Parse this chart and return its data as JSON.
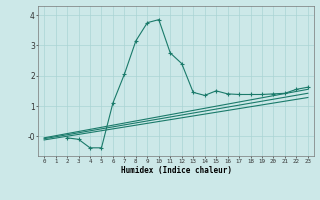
{
  "xlabel": "Humidex (Indice chaleur)",
  "background_color": "#cce8e8",
  "grid_color": "#aad4d4",
  "line_color": "#1a7a6a",
  "xlim": [
    -0.5,
    23.5
  ],
  "ylim": [
    -0.65,
    4.3
  ],
  "xticks": [
    0,
    1,
    2,
    3,
    4,
    5,
    6,
    7,
    8,
    9,
    10,
    11,
    12,
    13,
    14,
    15,
    16,
    17,
    18,
    19,
    20,
    21,
    22,
    23
  ],
  "yticks": [
    0,
    1,
    2,
    3,
    4
  ],
  "ytick_labels": [
    "-0",
    "1",
    "2",
    "3",
    "4"
  ],
  "curve1_x": [
    2,
    3,
    4,
    5,
    6,
    7,
    8,
    9,
    10,
    11,
    12,
    13,
    14,
    15,
    16,
    17,
    18,
    19,
    20,
    21,
    22,
    23
  ],
  "curve1_y": [
    -0.05,
    -0.1,
    -0.38,
    -0.38,
    1.1,
    2.05,
    3.15,
    3.75,
    3.85,
    2.75,
    2.4,
    1.45,
    1.35,
    1.5,
    1.4,
    1.38,
    1.38,
    1.38,
    1.4,
    1.42,
    1.55,
    1.62
  ],
  "line1_x": [
    0,
    23
  ],
  "line1_y": [
    -0.05,
    1.55
  ],
  "line2_x": [
    0,
    23
  ],
  "line2_y": [
    -0.08,
    1.42
  ],
  "line3_x": [
    0,
    23
  ],
  "line3_y": [
    -0.12,
    1.28
  ]
}
